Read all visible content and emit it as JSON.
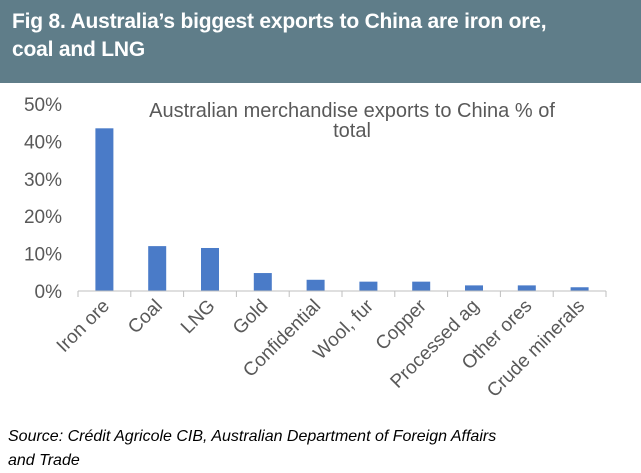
{
  "header": {
    "title_line1": "Fig 8. Australia’s biggest exports to China are iron ore,",
    "title_line2": "coal and LNG"
  },
  "chart_data": {
    "type": "bar",
    "title_line1": "Australian merchandise exports to China % of",
    "title_line2": "total",
    "categories": [
      "Iron ore",
      "Coal",
      "LNG",
      "Gold",
      "Confidential",
      "Wool, fur",
      "Copper",
      "Processed ag",
      "Other ores",
      "Crude minerals"
    ],
    "values": [
      43.5,
      12.0,
      11.5,
      4.8,
      3.0,
      2.5,
      2.5,
      1.5,
      1.5,
      1.0
    ],
    "ylim": [
      0,
      50
    ],
    "yticks": [
      0,
      10,
      20,
      30,
      40,
      50
    ],
    "ytick_labels": [
      "0%",
      "10%",
      "20%",
      "30%",
      "40%",
      "50%"
    ],
    "bar_color": "#4a7bc8",
    "axis_color": "#bfbfbf",
    "grid": false,
    "legend": "none"
  },
  "footer": {
    "source_line1": "Source: Crédit Agricole CIB, Australian Department of Foreign Affairs",
    "source_line2": "and Trade"
  }
}
